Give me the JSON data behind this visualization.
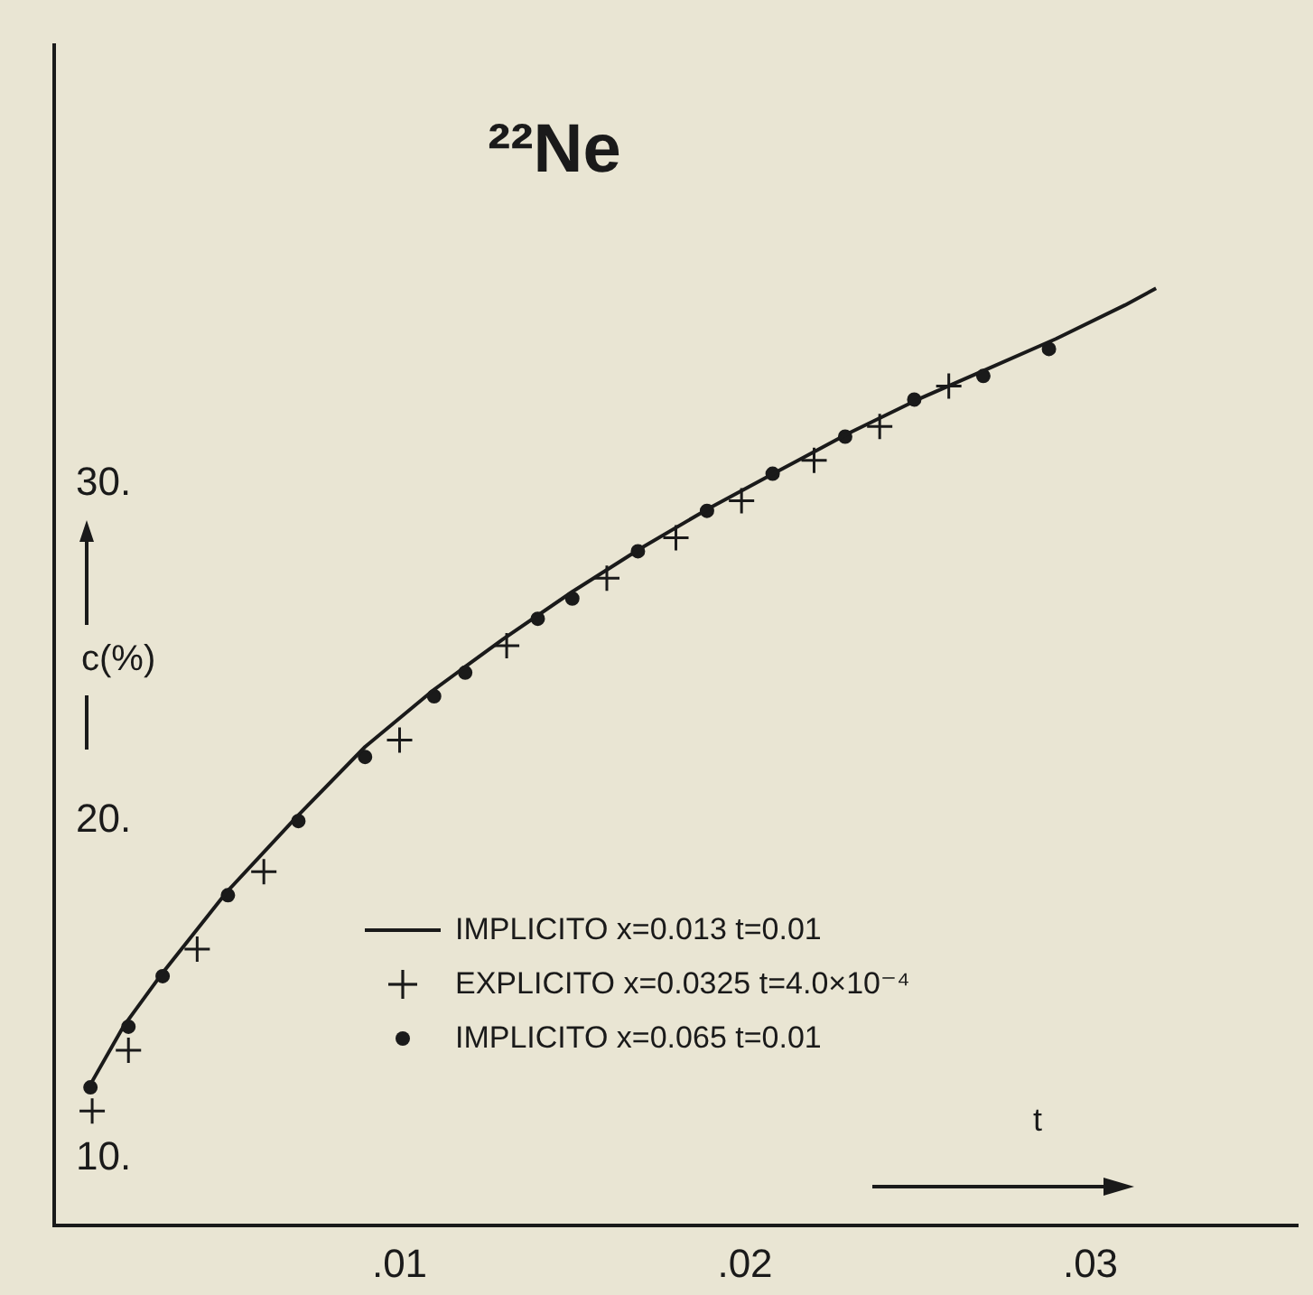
{
  "chart_data": {
    "type": "scatter",
    "title": "²²Ne",
    "xlabel": "t",
    "ylabel": "c(%)",
    "xlim": [
      0,
      0.036
    ],
    "ylim": [
      8,
      43
    ],
    "xticks": [
      {
        "value": 0.01,
        "label": ".01"
      },
      {
        "value": 0.02,
        "label": ".02"
      },
      {
        "value": 0.03,
        "label": ".03"
      }
    ],
    "yticks": [
      {
        "value": 10,
        "label": "10."
      },
      {
        "value": 20,
        "label": "20."
      },
      {
        "value": 30,
        "label": "30."
      }
    ],
    "grid": false,
    "legend": "bottom",
    "series": [
      {
        "name": "IMPLICITO x=0.013 t=0.01",
        "type": "line",
        "marker": "none",
        "line_style": "solid",
        "color": "#1a1a1a",
        "x": [
          0.001,
          0.002,
          0.00314,
          0.005,
          0.007,
          0.009,
          0.011,
          0.013,
          0.015,
          0.017,
          0.019,
          0.021,
          0.023,
          0.025,
          0.027,
          0.029,
          0.031,
          0.0319
        ],
        "values": [
          12.1,
          13.9,
          15.5,
          17.9,
          20.1,
          22.2,
          23.9,
          25.4,
          26.8,
          28.1,
          29.3,
          30.4,
          31.5,
          32.5,
          33.4,
          34.3,
          35.3,
          35.8
        ]
      },
      {
        "name": "EXPLICITO x=0.0325 t=4.0×10⁻⁴",
        "type": "scatter",
        "marker": "cross",
        "color": "#1a1a1a",
        "x": [
          0.0011,
          0.00215,
          0.00414,
          0.00607,
          0.01,
          0.0131,
          0.016,
          0.018,
          0.0199,
          0.022,
          0.0239,
          0.0259
        ],
        "values": [
          11.4,
          13.2,
          16.2,
          18.5,
          22.4,
          25.2,
          27.2,
          28.4,
          29.5,
          30.7,
          31.7,
          32.9
        ]
      },
      {
        "name": "IMPLICITO x=0.065 t=0.01",
        "type": "scatter",
        "marker": "circle",
        "color": "#1a1a1a",
        "x": [
          0.00105,
          0.00215,
          0.00314,
          0.00503,
          0.00707,
          0.009,
          0.011,
          0.0119,
          0.014,
          0.015,
          0.0169,
          0.0189,
          0.0208,
          0.0229,
          0.0249,
          0.0269,
          0.0288
        ],
        "values": [
          12.1,
          13.9,
          15.4,
          17.8,
          20.0,
          21.9,
          23.7,
          24.4,
          26.0,
          26.6,
          28.0,
          29.2,
          30.3,
          31.4,
          32.5,
          33.2,
          34.0
        ]
      }
    ]
  }
}
